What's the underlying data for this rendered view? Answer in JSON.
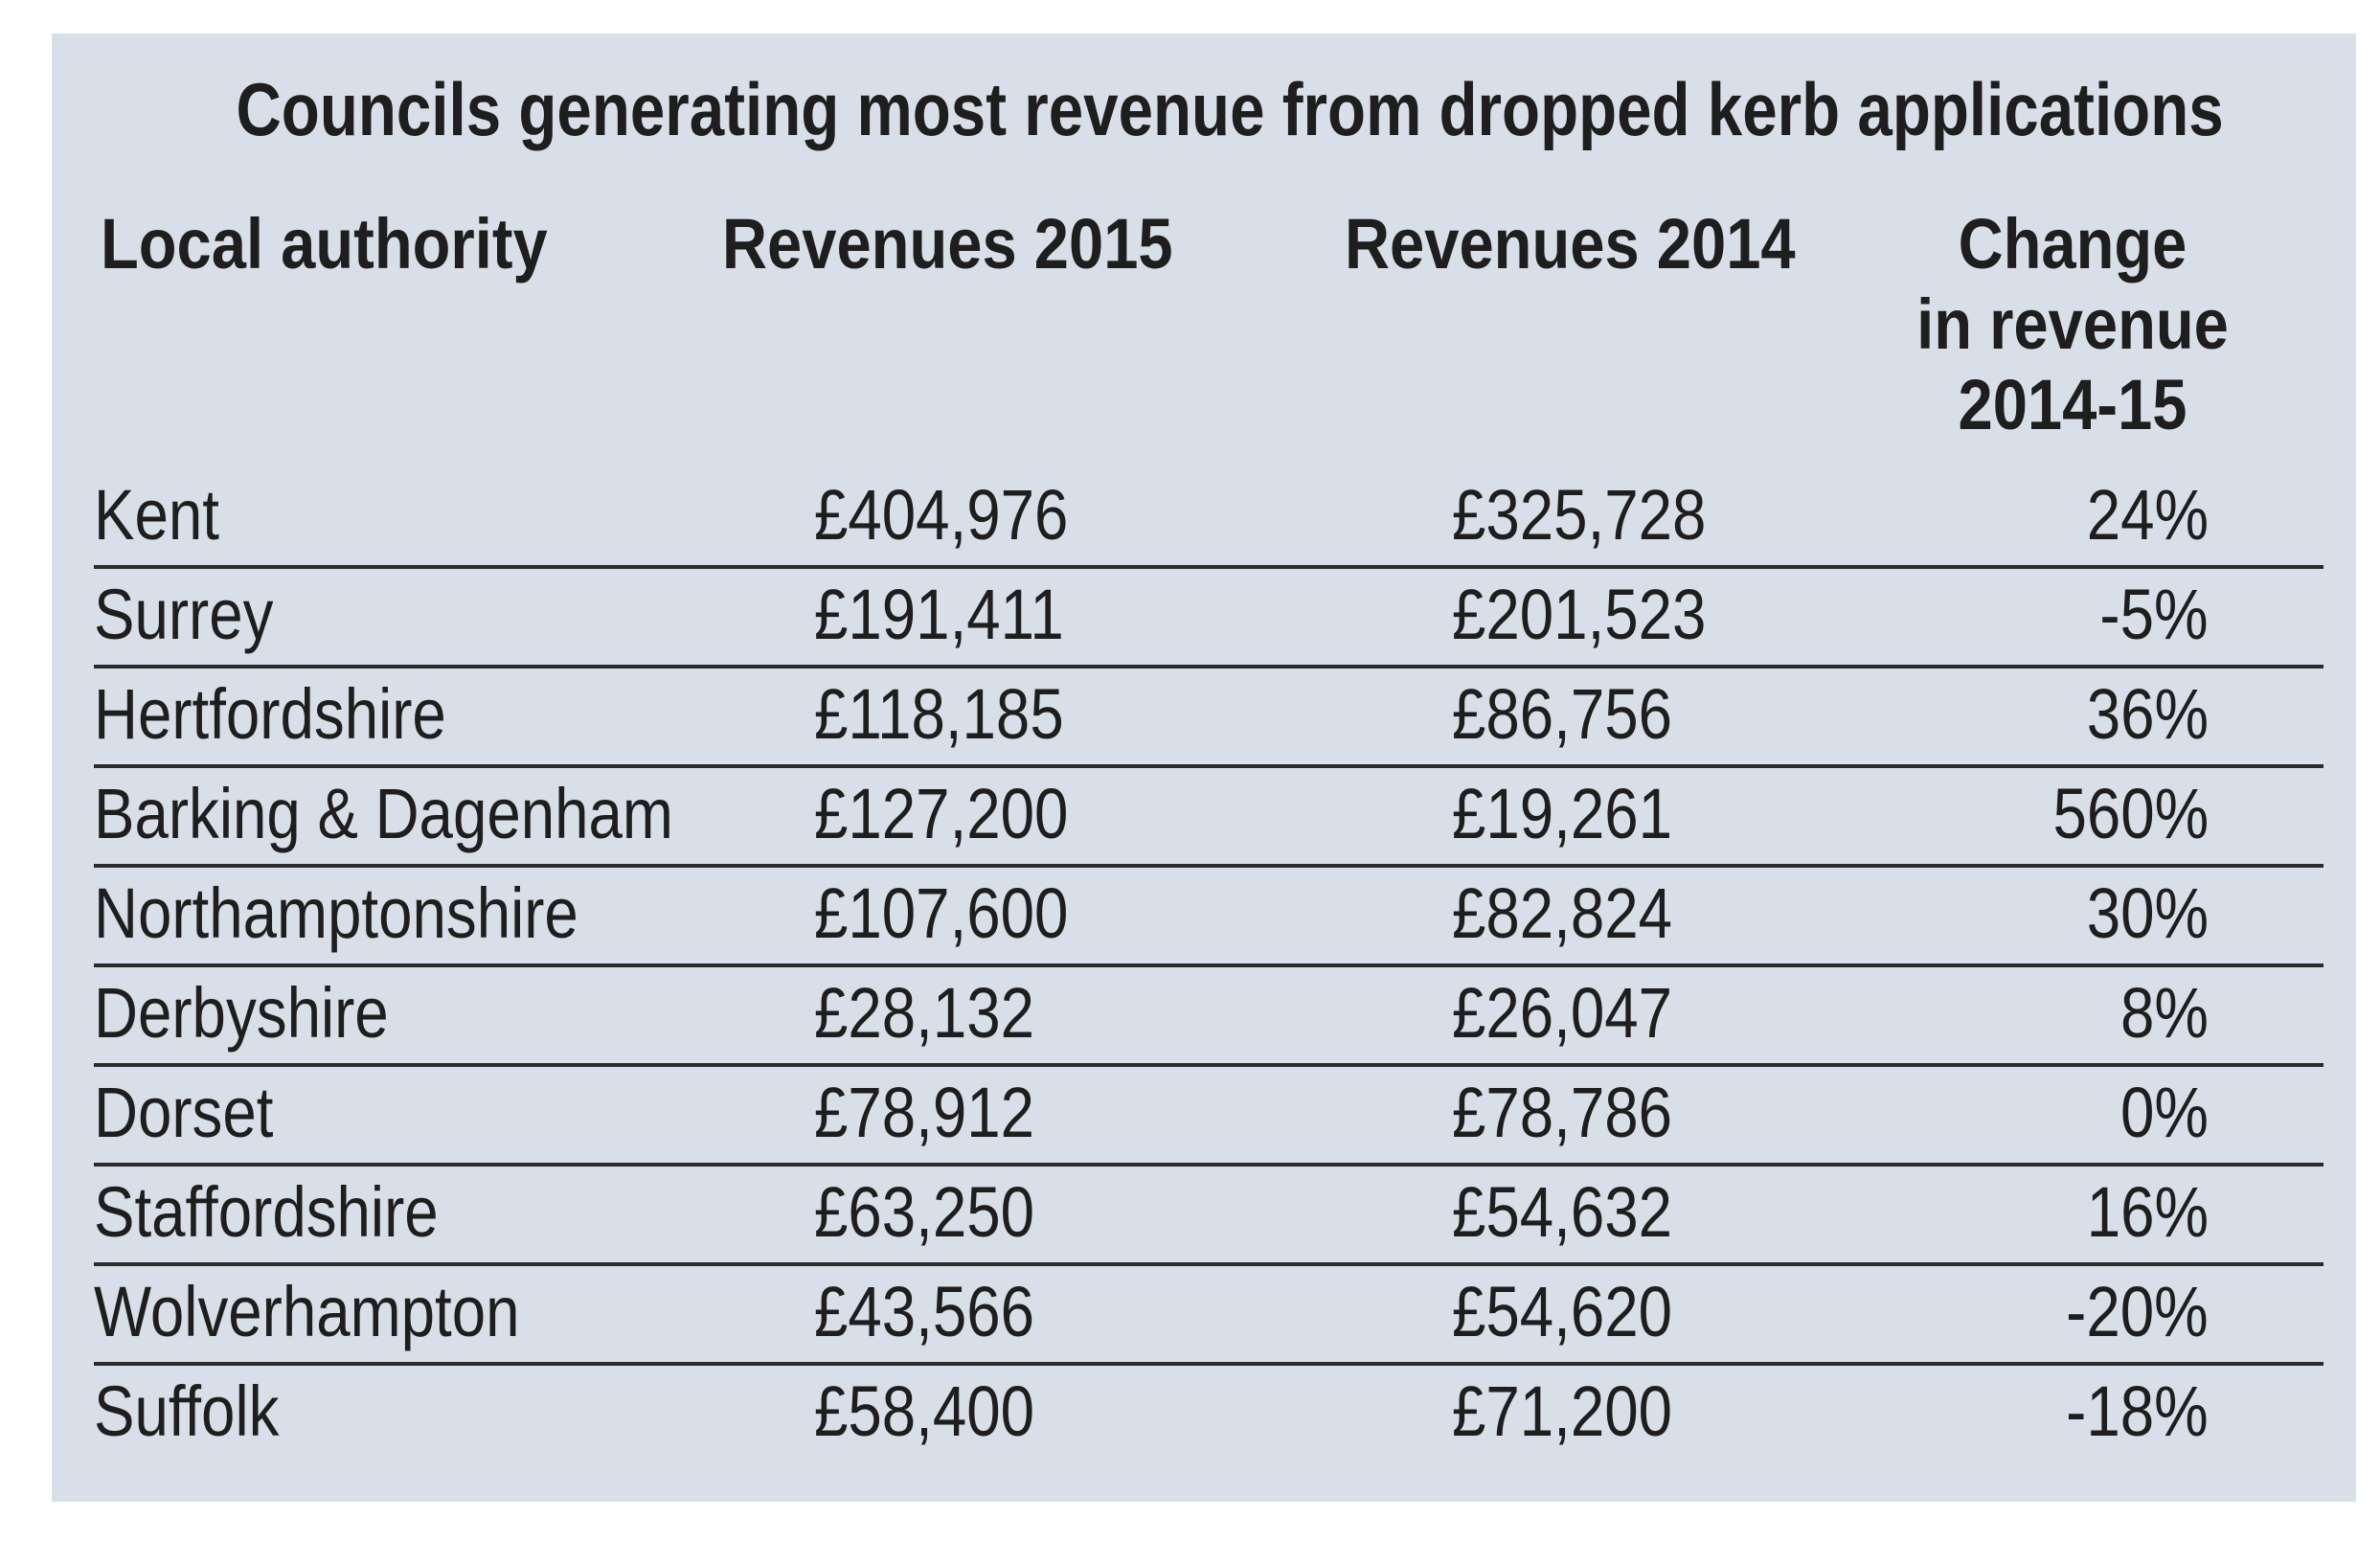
{
  "chart_data": {
    "type": "table",
    "title": "Councils generating most revenue from dropped kerb applications",
    "columns": [
      "Local authority",
      "Revenues 2015",
      "Revenues 2014",
      "Change in revenue 2014-15"
    ],
    "change_header_lines": [
      "Change",
      "in revenue",
      "2014-15"
    ],
    "rows": [
      {
        "authority": "Kent",
        "rev2015": "£404,976",
        "rev2014": "£325,728",
        "change": "24%"
      },
      {
        "authority": "Surrey",
        "rev2015": "£191,411",
        "rev2014": "£201,523",
        "change": "-5%"
      },
      {
        "authority": "Hertfordshire",
        "rev2015": "£118,185",
        "rev2014": "£86,756",
        "change": "36%"
      },
      {
        "authority": "Barking & Dagenham",
        "rev2015": "£127,200",
        "rev2014": "£19,261",
        "change": "560%"
      },
      {
        "authority": "Northamptonshire",
        "rev2015": "£107,600",
        "rev2014": "£82,824",
        "change": "30%"
      },
      {
        "authority": "Derbyshire",
        "rev2015": "£28,132",
        "rev2014": "£26,047",
        "change": "8%"
      },
      {
        "authority": "Dorset",
        "rev2015": "£78,912",
        "rev2014": "£78,786",
        "change": "0%"
      },
      {
        "authority": "Staffordshire",
        "rev2015": "£63,250",
        "rev2014": "£54,632",
        "change": "16%"
      },
      {
        "authority": "Wolverhampton",
        "rev2015": "£43,566",
        "rev2014": "£54,620",
        "change": "-20%"
      },
      {
        "authority": "Suffolk",
        "rev2015": "£58,400",
        "rev2014": "£71,200",
        "change": "-18%"
      }
    ]
  },
  "colors": {
    "panel_background": "#d8dfe8",
    "text": "#1e1e1e",
    "rule": "#2b2b2b"
  }
}
